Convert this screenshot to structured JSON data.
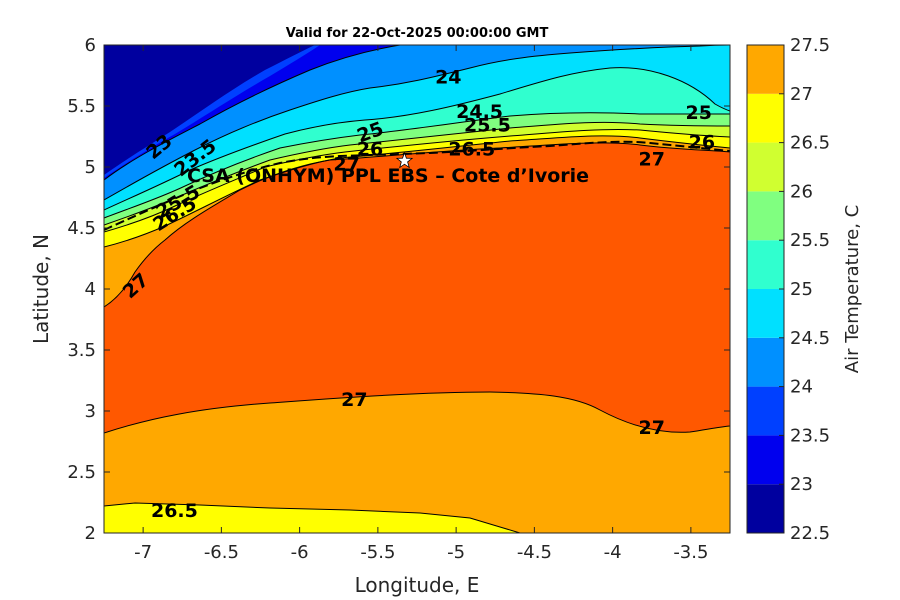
{
  "chart_data": {
    "type": "contour",
    "title": "Valid for 22-Oct-2025 00:00:00 GMT",
    "xlabel": "Longitude, E",
    "ylabel": "Latitude, N",
    "xlim": [
      -7.25,
      -3.25
    ],
    "ylim": [
      2,
      6
    ],
    "xticks": [
      "-7",
      "-6.5",
      "-6",
      "-5.5",
      "-5",
      "-4.5",
      "-4",
      "-3.5"
    ],
    "yticks": [
      "2",
      "2.5",
      "3",
      "3.5",
      "4",
      "4.5",
      "5",
      "5.5",
      "6"
    ],
    "colorbar": {
      "label": "Air Temperature, C",
      "range": [
        22.5,
        27.5
      ],
      "ticks": [
        "22.5",
        "23",
        "23.5",
        "24",
        "24.5",
        "25",
        "25.5",
        "26",
        "26.5",
        "27",
        "27.5"
      ],
      "levels": [
        22.5,
        23,
        23.5,
        24,
        24.5,
        25,
        25.5,
        26,
        26.5,
        27,
        27.5
      ],
      "colors": [
        "#00009f",
        "#0000ee",
        "#0040ff",
        "#0090ff",
        "#00e0ff",
        "#30ffcf",
        "#80ff80",
        "#d0ff30",
        "#ffff00",
        "#ffa800",
        "#ff5800",
        "#ff0000"
      ]
    },
    "contour_labels": [
      {
        "text": "23",
        "lon": -6.9,
        "lat": 5.17
      },
      {
        "text": "23.5",
        "lon": -6.67,
        "lat": 5.08
      },
      {
        "text": "24",
        "lon": -5.05,
        "lat": 5.74
      },
      {
        "text": "24.5",
        "lon": -4.85,
        "lat": 5.46
      },
      {
        "text": "25",
        "lon": -5.55,
        "lat": 5.29
      },
      {
        "text": "25.5",
        "lon": -4.8,
        "lat": 5.35
      },
      {
        "text": "25",
        "lon": -3.45,
        "lat": 5.45
      },
      {
        "text": "26",
        "lon": -5.55,
        "lat": 5.15
      },
      {
        "text": "26.5",
        "lon": -4.9,
        "lat": 5.15
      },
      {
        "text": "26",
        "lon": -3.43,
        "lat": 5.21
      },
      {
        "text": "27",
        "lon": -5.7,
        "lat": 5.03
      },
      {
        "text": "27",
        "lon": -3.75,
        "lat": 5.07
      },
      {
        "text": "26.5",
        "lon": -6.8,
        "lat": 4.62
      },
      {
        "text": "25.5",
        "lon": -6.78,
        "lat": 4.72
      },
      {
        "text": "27",
        "lon": -7.05,
        "lat": 4.03
      },
      {
        "text": "27",
        "lon": -5.65,
        "lat": 3.1
      },
      {
        "text": "27",
        "lon": -3.75,
        "lat": 2.87
      },
      {
        "text": "26.5",
        "lon": -6.8,
        "lat": 2.19
      }
    ],
    "site": {
      "label": "CSA (ONHYM) PPL EBS  – Cote d’Ivorie",
      "lon": -5.33,
      "lat": 5.05
    }
  }
}
